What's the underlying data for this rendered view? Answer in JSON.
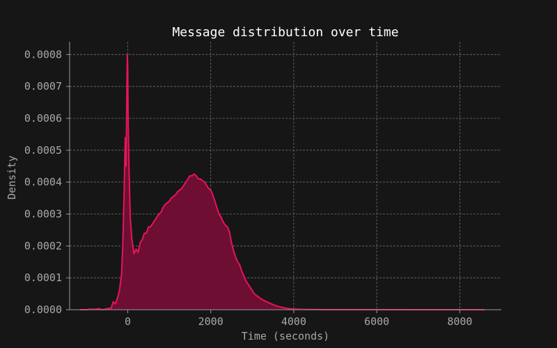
{
  "colors": {
    "background": "#161616",
    "axis": "#9a9a9a",
    "grid": "#6f6f6f",
    "title": "#ffffff",
    "tick_text": "#a8a8a8",
    "line": "#e8135c",
    "fill": "#6e0e33"
  },
  "chart_data": {
    "type": "area",
    "title": "Message distribution over time",
    "xlabel": "Time (seconds)",
    "ylabel": "Density",
    "xlim": [
      -1400,
      9000
    ],
    "ylim": [
      0,
      0.00084
    ],
    "xticks": [
      0,
      2000,
      4000,
      6000,
      8000
    ],
    "xtick_labels": [
      "0",
      "2000",
      "4000",
      "6000",
      "8000"
    ],
    "yticks": [
      0,
      0.0001,
      0.0002,
      0.0003,
      0.0004,
      0.0005,
      0.0006,
      0.0007,
      0.0008
    ],
    "ytick_labels": [
      "0.0000",
      "0.0001",
      "0.0002",
      "0.0003",
      "0.0004",
      "0.0005",
      "0.0006",
      "0.0007",
      "0.0008"
    ],
    "grid": true,
    "legend": "none",
    "series": [
      {
        "x": [
          -1150,
          -1000,
          -900,
          -800,
          -700,
          -600,
          -500,
          -400,
          -350,
          -300,
          -250,
          -200,
          -150,
          -120,
          -90,
          -60,
          -40,
          -20,
          -10,
          0,
          10,
          30,
          60,
          100,
          150,
          200,
          250,
          300,
          350,
          400,
          450,
          500,
          550,
          600,
          650,
          700,
          750,
          800,
          850,
          900,
          950,
          1000,
          1050,
          1100,
          1150,
          1200,
          1250,
          1300,
          1350,
          1400,
          1450,
          1500,
          1550,
          1600,
          1650,
          1700,
          1750,
          1800,
          1850,
          1900,
          1950,
          2000,
          2050,
          2100,
          2150,
          2200,
          2250,
          2300,
          2350,
          2400,
          2450,
          2500,
          2550,
          2600,
          2650,
          2700,
          2750,
          2800,
          2850,
          2900,
          2950,
          3000,
          3050,
          3100,
          3150,
          3200,
          3300,
          3400,
          3500,
          3600,
          3700,
          3800,
          3900,
          4000,
          4200,
          4500,
          5000,
          6000,
          7000,
          8000,
          8600
        ],
        "y": [
          0,
          0,
          2e-06,
          1e-06,
          3e-06,
          0,
          3e-06,
          5e-06,
          2.5e-05,
          1.8e-05,
          3.5e-05,
          6e-05,
          0.00011,
          0.0002,
          0.00035,
          0.00054,
          0.00045,
          0.0007,
          0.0008,
          0.00076,
          0.0006,
          0.00045,
          0.00029,
          0.00022,
          0.000175,
          0.00019,
          0.00018,
          0.00021,
          0.00022,
          0.00024,
          0.00024,
          0.00026,
          0.00026,
          0.00027,
          0.00028,
          0.00029,
          0.0003,
          0.000305,
          0.00032,
          0.00033,
          0.000335,
          0.00034,
          0.00035,
          0.000355,
          0.00036,
          0.00037,
          0.000375,
          0.00038,
          0.00039,
          0.0004,
          0.00041,
          0.00042,
          0.00042,
          0.000425,
          0.00042,
          0.00041,
          0.00041,
          0.000405,
          0.0004,
          0.00039,
          0.00038,
          0.000375,
          0.00036,
          0.00034,
          0.00032,
          0.0003,
          0.00029,
          0.000275,
          0.000265,
          0.00026,
          0.000245,
          0.00021,
          0.000185,
          0.000165,
          0.00015,
          0.00014,
          0.00012,
          0.000105,
          9e-05,
          8e-05,
          7e-05,
          6e-05,
          5e-05,
          4.5e-05,
          4e-05,
          3.5e-05,
          2.8e-05,
          2.2e-05,
          1.6e-05,
          1.1e-05,
          8e-06,
          5e-06,
          3e-06,
          2e-06,
          1e-06,
          5e-07,
          3e-07,
          2e-07,
          1e-07,
          0,
          0
        ]
      }
    ]
  }
}
